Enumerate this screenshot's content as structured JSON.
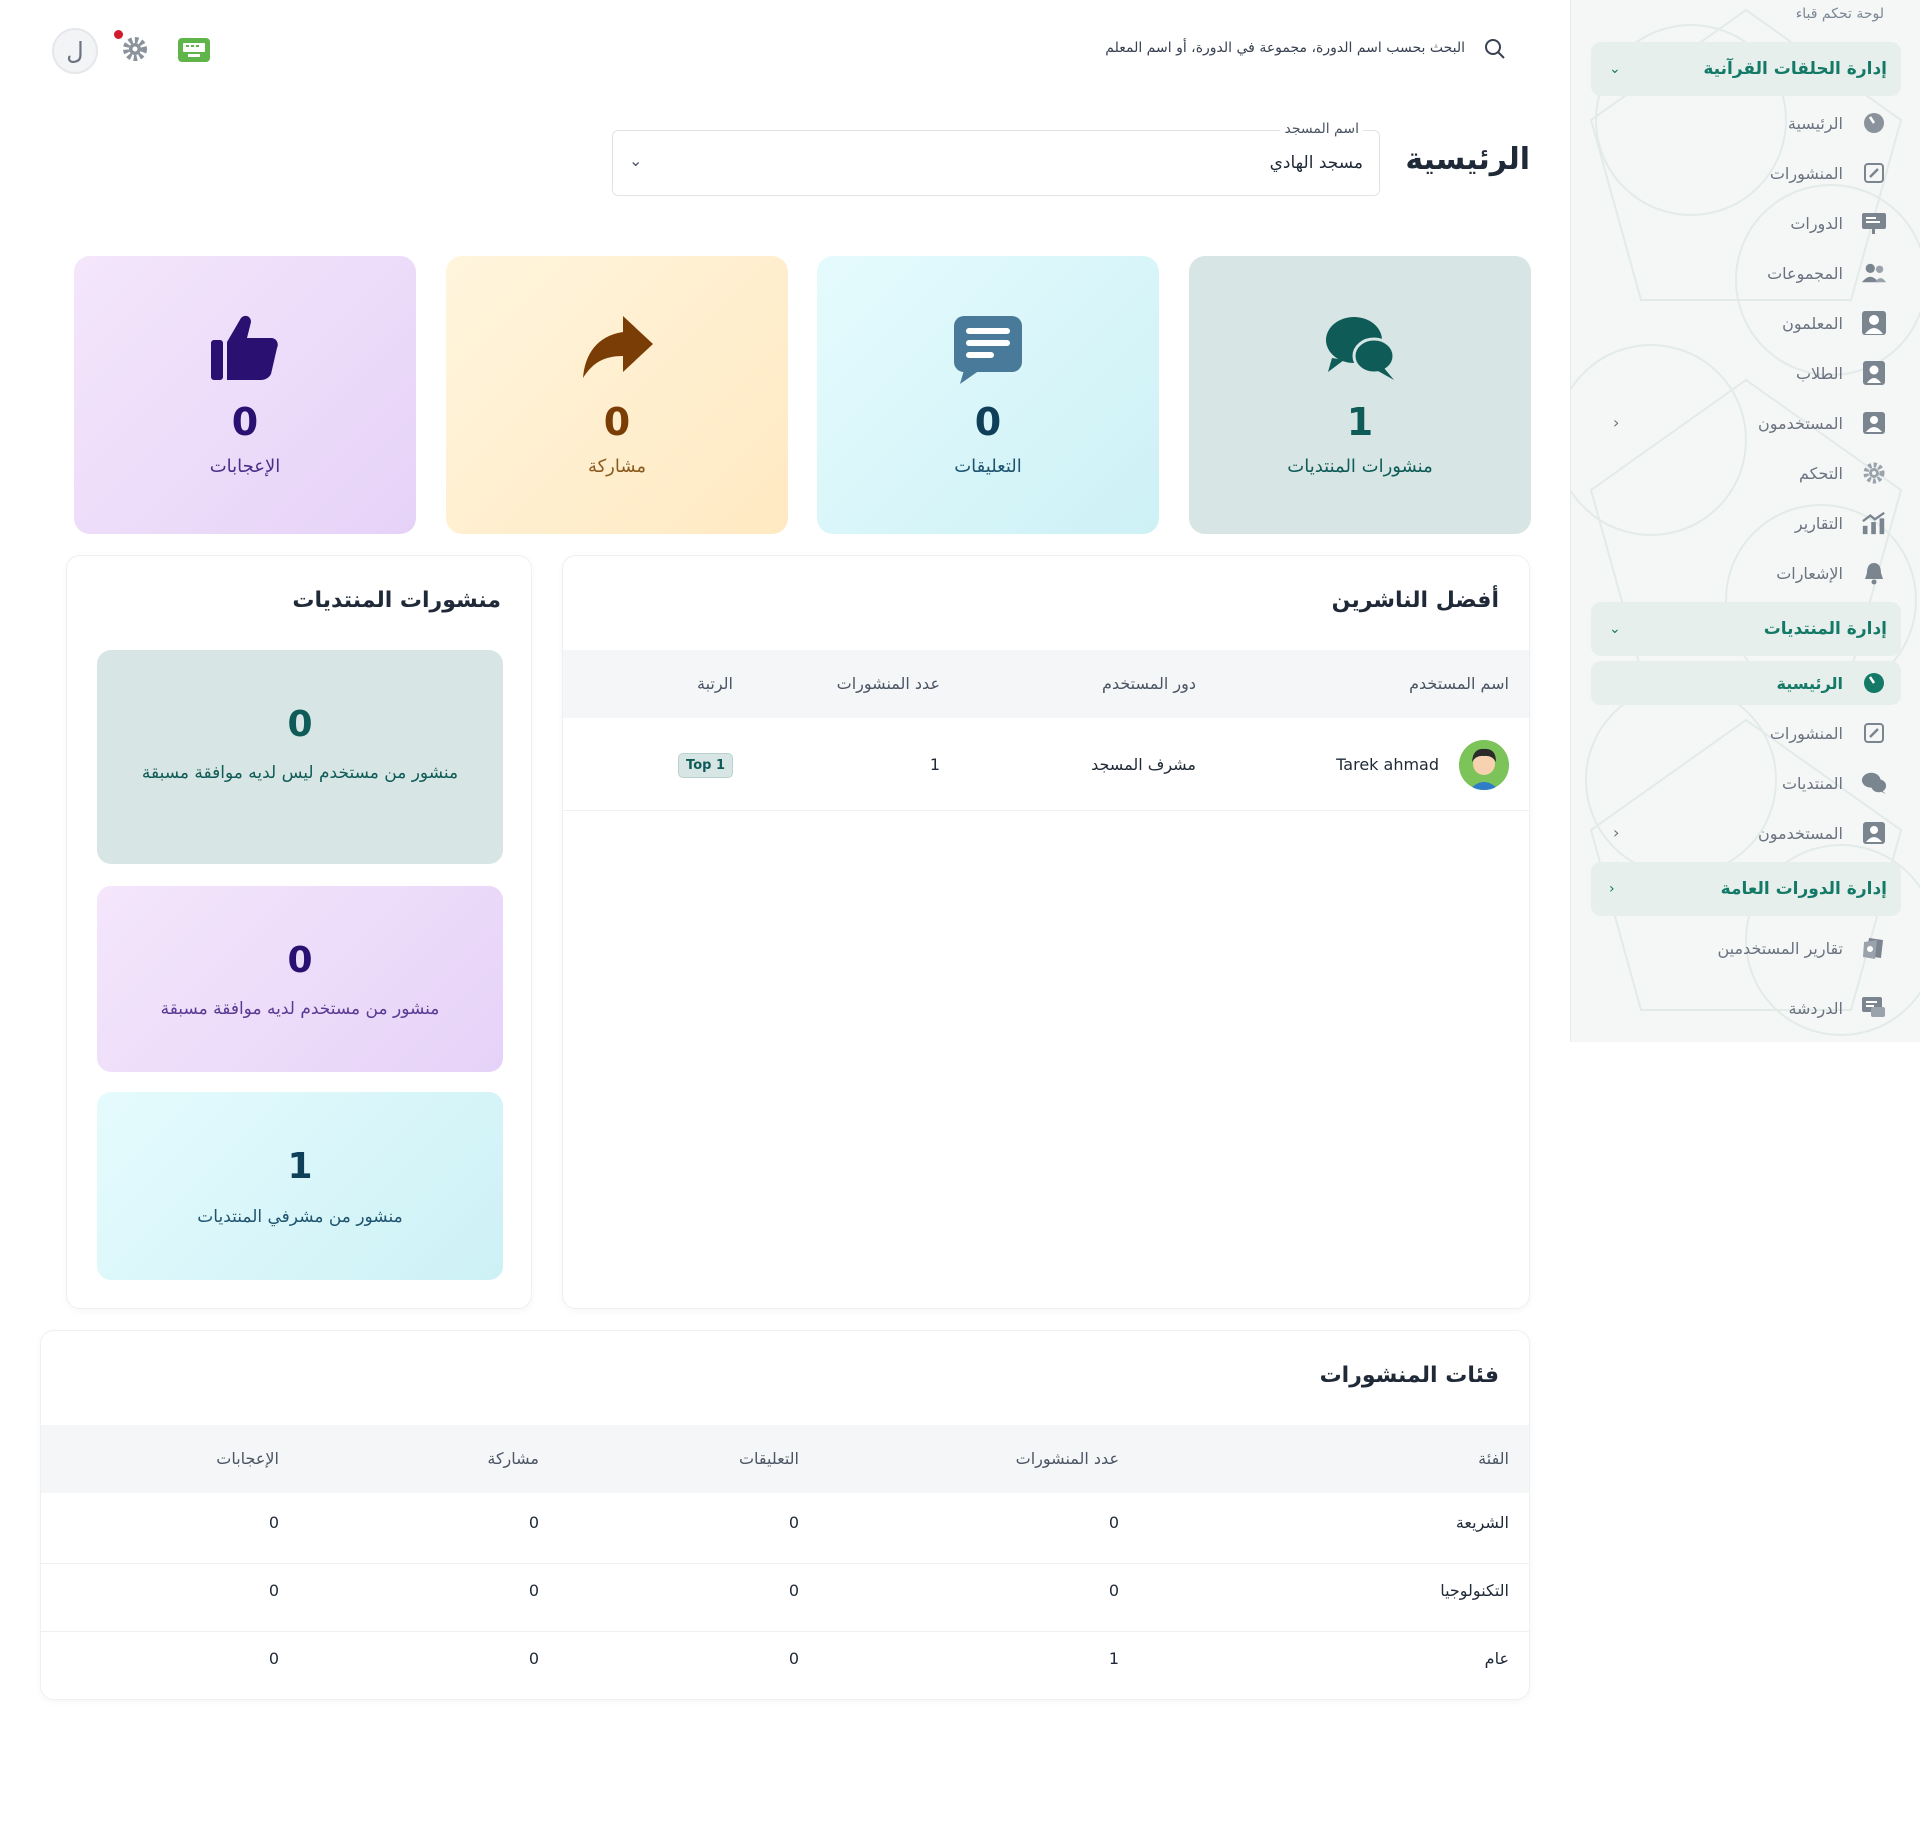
{
  "topbar": {
    "search_placeholder": "البحث بحسب اسم الدورة، مجموعة في الدورة، أو اسم المعلم",
    "avatar_initial": "ل"
  },
  "sidebar": {
    "header": "لوحة تحكم قباء",
    "quran_section": {
      "title": "إدارة الحلقات القرآنية",
      "items": [
        {
          "label": "الرئيسية",
          "icon": "gauge-icon"
        },
        {
          "label": "المنشورات",
          "icon": "edit-icon"
        },
        {
          "label": "الدورات",
          "icon": "presentation-icon"
        },
        {
          "label": "المجموعات",
          "icon": "users-icon"
        },
        {
          "label": "المعلمون",
          "icon": "teacher-icon"
        },
        {
          "label": "الطلاب",
          "icon": "student-icon"
        },
        {
          "label": "المستخدمون",
          "icon": "user-icon"
        },
        {
          "label": "التحكم",
          "icon": "gear-icon"
        },
        {
          "label": "التقارير",
          "icon": "chart-icon"
        },
        {
          "label": "الإشعارات",
          "icon": "bell-icon"
        }
      ]
    },
    "forums_section": {
      "title": "إدارة المنتديات",
      "items": [
        {
          "label": "الرئيسية",
          "icon": "gauge-icon"
        },
        {
          "label": "المنشورات",
          "icon": "edit-icon"
        },
        {
          "label": "المنتديات",
          "icon": "comments-icon"
        },
        {
          "label": "المستخدمون",
          "icon": "user-icon"
        }
      ]
    },
    "courses_section": {
      "title": "إدارة الدورات العامة"
    },
    "extra_items": [
      {
        "label": "تقارير المستخدمين",
        "icon": "report-icon"
      },
      {
        "label": "الدردشة",
        "icon": "chat-icon"
      }
    ]
  },
  "page": {
    "title": "الرئيسية",
    "mosque_select": {
      "label": "اسم المسجد",
      "value": "مسجد الهادي"
    }
  },
  "stats": {
    "forum_posts": {
      "value": "1",
      "label": "منشورات المنتديات"
    },
    "comments": {
      "value": "0",
      "label": "التعليقات"
    },
    "shares": {
      "value": "0",
      "label": "مشاركة"
    },
    "likes": {
      "value": "0",
      "label": "الإعجابات"
    }
  },
  "top_publishers": {
    "title": "أفضل الناشرين",
    "headers": {
      "name": "اسم المستخدم",
      "role": "دور المستخدم",
      "posts": "عدد المنشورات",
      "rank": "الرتبة"
    },
    "rows": [
      {
        "name": "Tarek ahmad",
        "role": "مشرف المسجد",
        "posts": "1",
        "rank": "Top 1"
      }
    ]
  },
  "forum_posts_panel": {
    "title": "منشورات المنتديات",
    "items": [
      {
        "value": "0",
        "label": "منشور من مستخدم ليس لديه موافقة مسبقة"
      },
      {
        "value": "0",
        "label": "منشور من مستخدم لديه موافقة مسبقة"
      },
      {
        "value": "1",
        "label": "منشور من مشرفي المنتديات"
      }
    ]
  },
  "categories": {
    "title": "فئات المنشورات",
    "headers": {
      "category": "الفئة",
      "posts": "عدد المنشورات",
      "comments": "التعليقات",
      "shares": "مشاركة",
      "likes": "الإعجابات"
    },
    "rows": [
      {
        "category": "الشريعة",
        "posts": "0",
        "comments": "0",
        "shares": "0",
        "likes": "0"
      },
      {
        "category": "التكنولوجيا",
        "posts": "0",
        "comments": "0",
        "shares": "0",
        "likes": "0"
      },
      {
        "category": "عام",
        "posts": "1",
        "comments": "0",
        "shares": "0",
        "likes": "0"
      }
    ]
  },
  "colors": {
    "accent": "#147a67",
    "forum_card": "#d7e6e4",
    "comments_card": "#cdf1f6",
    "shares_card": "#ffe9c2",
    "likes_card": "#e6d2f8"
  }
}
